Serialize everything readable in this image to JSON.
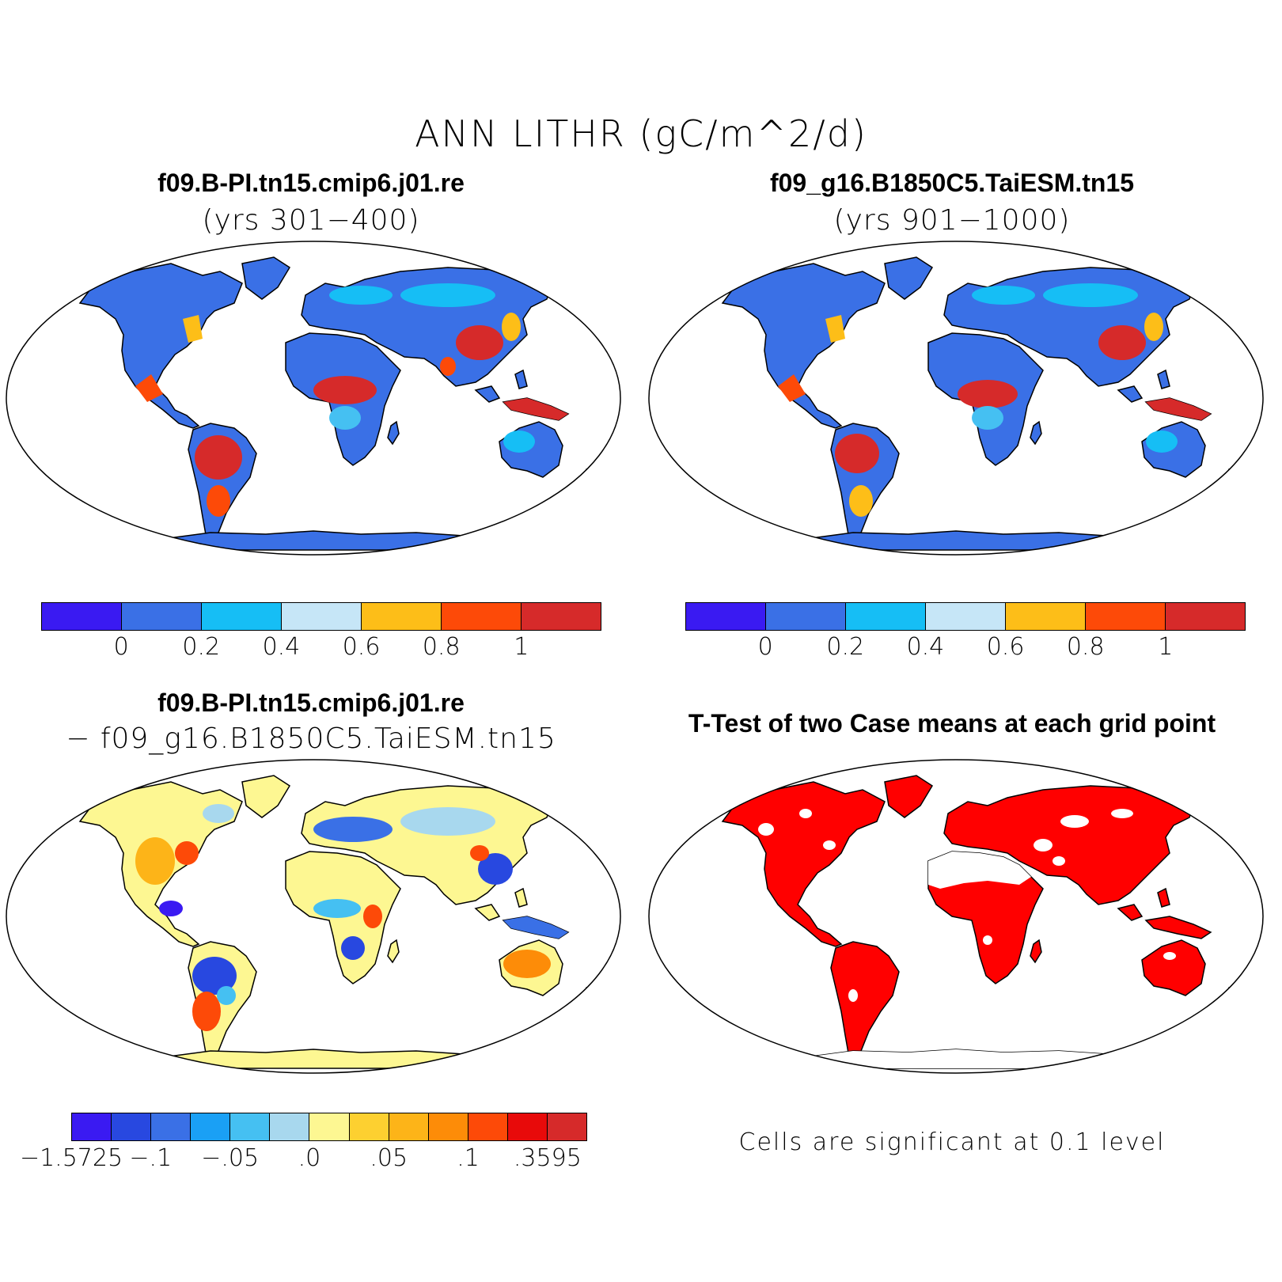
{
  "title": "ANN LITHR (gC/m^2/d)",
  "panels": {
    "top_left": {
      "title": "f09.B-PI.tn15.cmip6.j01.re",
      "subtitle": "(yrs 301−400)"
    },
    "top_right": {
      "title": "f09_g16.B1850C5.TaiESM.tn15",
      "subtitle": "(yrs 901−1000)"
    },
    "bottom_left": {
      "title": "f09.B-PI.tn15.cmip6.j01.re",
      "subtitle": "− f09_g16.B1850C5.TaiESM.tn15"
    },
    "bottom_right": {
      "title": "T-Test of two Case means at each grid point",
      "note": "Cells are significant at 0.1 level"
    }
  },
  "colorbar_case": {
    "colors": [
      "#3a1af2",
      "#3a70e6",
      "#16bef5",
      "#c6e6f7",
      "#fdbe18",
      "#fd4a08",
      "#d62a2a"
    ],
    "labels": [
      "0",
      "0.2",
      "0.4",
      "0.6",
      "0.8",
      "1"
    ]
  },
  "colorbar_diff": {
    "colors": [
      "#3a1af2",
      "#2848e0",
      "#3a70e6",
      "#1aa0f5",
      "#45c0f2",
      "#a8d8ee",
      "#fdf792",
      "#fdd030",
      "#fdb418",
      "#fd8c08",
      "#fd4a08",
      "#e80a0a",
      "#d62a2a"
    ],
    "labels": [
      "−1.5725",
      "−.1",
      "−.05",
      ".0",
      ".05",
      ".1",
      ".3595"
    ]
  },
  "map_colors": {
    "land_case": "#3a70e6",
    "land_diff": "#fdf792",
    "significant": "#ff0000",
    "outline": "#000000"
  }
}
